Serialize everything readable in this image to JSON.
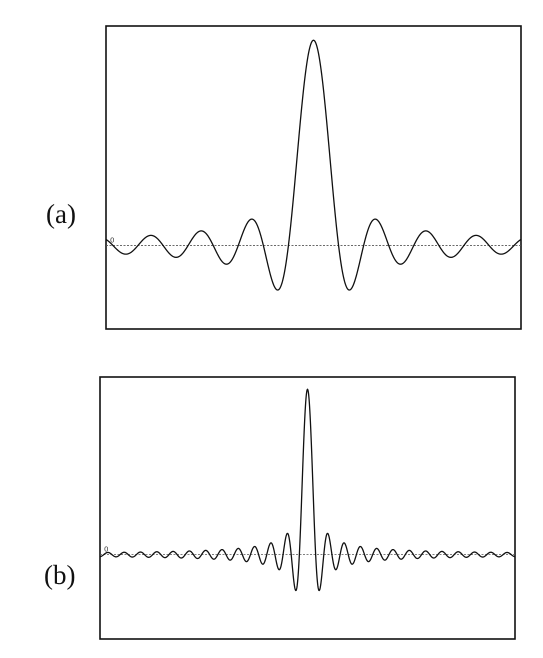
{
  "chart_data": [
    {
      "panel_label": "(a)",
      "type": "line",
      "function": "sinc",
      "zero_tick_label": "0",
      "x_range": [
        -26,
        26
      ],
      "y_range": [
        -0.3,
        1.05
      ],
      "grid": false,
      "baseline_at_zero": true,
      "peak": {
        "x": 0,
        "y": 1.0
      },
      "first_minima": [
        {
          "x": -4.49,
          "y": -0.217
        },
        {
          "x": 4.49,
          "y": -0.217
        }
      ],
      "zero_crossings_spacing": 3.14159
    },
    {
      "panel_label": "(b)",
      "type": "line",
      "function": "sinc",
      "zero_tick_label": "0",
      "x_range": [
        -80,
        80
      ],
      "y_range": [
        -0.45,
        1.05
      ],
      "grid": false,
      "baseline_at_zero": true,
      "peak": {
        "x": 0,
        "y": 1.0
      },
      "first_minima": [
        {
          "x": -4.49,
          "y": -0.217
        },
        {
          "x": 4.49,
          "y": -0.217
        }
      ],
      "zero_crossings_spacing": 3.14159
    }
  ]
}
